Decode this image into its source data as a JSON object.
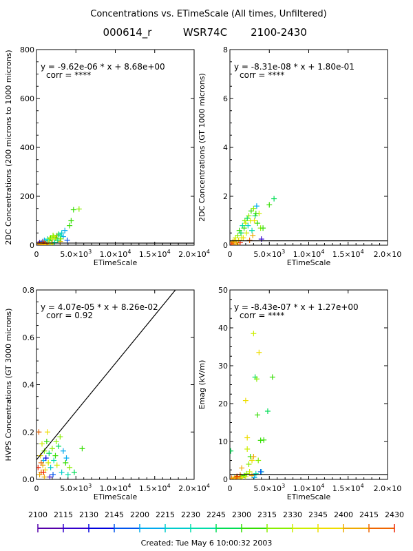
{
  "header": {
    "title": "Concentrations vs. ETimeScale (All times, Unfiltered)",
    "id": "000614_r",
    "aircraft": "WSR74C",
    "time_range": "2100-2430"
  },
  "footer": {
    "created": "Created: Tue May  6 10:00:32 2003"
  },
  "colorbar": {
    "labels": [
      "2100",
      "2115",
      "2130",
      "2145",
      "2200",
      "2215",
      "2230",
      "2245",
      "2300",
      "2315",
      "2330",
      "2345",
      "2400",
      "2415",
      "2430"
    ],
    "colors": [
      "#5500aa",
      "#3300cc",
      "#0000dd",
      "#0055ee",
      "#00aaee",
      "#00cccc",
      "#00ddaa",
      "#00dd55",
      "#33dd00",
      "#88ee00",
      "#ccee00",
      "#eedd00",
      "#eeaa00",
      "#ee6600",
      "#ee2200"
    ]
  },
  "chart_data": [
    {
      "type": "scatter",
      "xlabel": "ETimeScale",
      "ylabel": "2DC Concentrations (200 microns to 1000 microns)",
      "fit_text": "y = -9.62e-06 * x  + 8.68e+00",
      "corr_text": "corr = ****",
      "xlim": [
        0,
        20000
      ],
      "ylim": [
        0,
        800
      ],
      "xticks": [
        0,
        5000,
        10000,
        15000,
        20000
      ],
      "xtick_labels": [
        [
          "0",
          ""
        ],
        [
          "5.0×10",
          "3"
        ],
        [
          "1.0×10",
          "4"
        ],
        [
          "1.5×10",
          "4"
        ],
        [
          "2.0×10",
          "4"
        ]
      ],
      "yticks": [
        0,
        200,
        400,
        600,
        800
      ],
      "ytick_labels": [
        "0",
        "200",
        "400",
        "600",
        "800"
      ],
      "fit_line": {
        "slope": -9.62e-06,
        "intercept": 8.68
      },
      "points": [
        [
          200,
          5,
          0
        ],
        [
          400,
          10,
          1
        ],
        [
          600,
          8,
          2
        ],
        [
          800,
          15,
          3
        ],
        [
          1000,
          20,
          4
        ],
        [
          1200,
          12,
          5
        ],
        [
          1400,
          25,
          6
        ],
        [
          1600,
          18,
          7
        ],
        [
          1800,
          30,
          8
        ],
        [
          2000,
          22,
          9
        ],
        [
          2200,
          35,
          10
        ],
        [
          2400,
          28,
          11
        ],
        [
          2600,
          40,
          12
        ],
        [
          1000,
          8,
          13
        ],
        [
          800,
          12,
          14
        ],
        [
          500,
          3,
          13
        ],
        [
          300,
          6,
          12
        ],
        [
          1500,
          10,
          11
        ],
        [
          1700,
          28,
          10
        ],
        [
          2100,
          40,
          9
        ],
        [
          2500,
          30,
          8
        ],
        [
          2800,
          45,
          7
        ],
        [
          3000,
          38,
          6
        ],
        [
          3200,
          50,
          5
        ],
        [
          3400,
          35,
          4
        ],
        [
          3600,
          60,
          4
        ],
        [
          3900,
          20,
          3
        ],
        [
          4200,
          80,
          8
        ],
        [
          4400,
          100,
          8
        ],
        [
          4700,
          145,
          8
        ],
        [
          5400,
          148,
          9
        ],
        [
          3000,
          15,
          12
        ],
        [
          2000,
          10,
          13
        ],
        [
          1200,
          5,
          14
        ],
        [
          700,
          2,
          12
        ],
        [
          1100,
          3,
          11
        ],
        [
          1900,
          5,
          10
        ],
        [
          2300,
          12,
          6
        ],
        [
          2700,
          20,
          7
        ],
        [
          3100,
          26,
          9
        ]
      ]
    },
    {
      "type": "scatter",
      "xlabel": "ETimeScale",
      "ylabel": "2DC Concentrations (GT 1000 microns)",
      "fit_text": "y = -8.31e-08 * x  + 1.80e-01",
      "corr_text": "corr = ****",
      "xlim": [
        0,
        20000
      ],
      "ylim": [
        0,
        8
      ],
      "xticks": [
        0,
        5000,
        10000,
        15000,
        20000
      ],
      "xtick_labels": [
        [
          "0",
          ""
        ],
        [
          "5.0×10",
          "3"
        ],
        [
          "1.0×10",
          "4"
        ],
        [
          "1.5×10",
          "4"
        ],
        [
          "2.0×10",
          ""
        ]
      ],
      "yticks": [
        0,
        2,
        4,
        6,
        8
      ],
      "ytick_labels": [
        "0",
        "2",
        "4",
        "6",
        "8"
      ],
      "fit_line": {
        "slope": -8.31e-08,
        "intercept": 0.18
      },
      "points": [
        [
          200,
          0.05,
          14
        ],
        [
          300,
          0.1,
          13
        ],
        [
          400,
          0.15,
          12
        ],
        [
          500,
          0.05,
          13
        ],
        [
          600,
          0.2,
          11
        ],
        [
          700,
          0.3,
          10
        ],
        [
          800,
          0.1,
          12
        ],
        [
          1000,
          0.4,
          9
        ],
        [
          1100,
          0.2,
          11
        ],
        [
          1200,
          0.6,
          8
        ],
        [
          1400,
          0.5,
          7
        ],
        [
          1500,
          0.3,
          10
        ],
        [
          1600,
          0.8,
          6
        ],
        [
          1800,
          0.7,
          8
        ],
        [
          1900,
          1.0,
          9
        ],
        [
          2000,
          0.9,
          10
        ],
        [
          2200,
          1.1,
          7
        ],
        [
          2300,
          0.8,
          5
        ],
        [
          2400,
          1.2,
          9
        ],
        [
          2600,
          1.0,
          10
        ],
        [
          2700,
          1.4,
          8
        ],
        [
          2800,
          0.6,
          6
        ],
        [
          3000,
          1.5,
          9
        ],
        [
          3100,
          1.0,
          11
        ],
        [
          3200,
          1.2,
          7
        ],
        [
          3400,
          1.6,
          4
        ],
        [
          3500,
          0.9,
          8
        ],
        [
          3700,
          1.3,
          10
        ],
        [
          3900,
          0.7,
          9
        ],
        [
          4200,
          0.7,
          8
        ],
        [
          4000,
          0.25,
          1
        ],
        [
          5000,
          1.65,
          8
        ],
        [
          5600,
          1.9,
          7
        ],
        [
          2500,
          0.2,
          13
        ],
        [
          1300,
          0.1,
          14
        ],
        [
          900,
          0.05,
          12
        ],
        [
          1700,
          0.3,
          11
        ],
        [
          2100,
          0.5,
          10
        ],
        [
          3300,
          1.3,
          8
        ],
        [
          2900,
          0.4,
          12
        ]
      ]
    },
    {
      "type": "scatter",
      "xlabel": "ETimeScale",
      "ylabel": "HVPS Concentrations (GT 3000 microns)",
      "fit_text": "y = 4.07e-05 * x  + 8.26e-02",
      "corr_text": "corr = 0.92",
      "xlim": [
        0,
        20000
      ],
      "ylim": [
        0,
        0.8
      ],
      "xticks": [
        0,
        5000,
        10000,
        15000,
        20000
      ],
      "xtick_labels": [
        [
          "0",
          ""
        ],
        [
          "5.0×10",
          "3"
        ],
        [
          "1.0×10",
          "4"
        ],
        [
          "1.5×10",
          "4"
        ],
        [
          "2.0×10",
          "4"
        ]
      ],
      "yticks": [
        0,
        0.2,
        0.4,
        0.6,
        0.8
      ],
      "ytick_labels": [
        "0.0",
        "0.2",
        "0.4",
        "0.6",
        "0.8"
      ],
      "fit_line": {
        "slope": 4.07e-05,
        "intercept": 0.0826
      },
      "points": [
        [
          300,
          0.2,
          13
        ],
        [
          200,
          0.05,
          14
        ],
        [
          400,
          0.02,
          12
        ],
        [
          500,
          0.1,
          11
        ],
        [
          600,
          0.03,
          13
        ],
        [
          700,
          0.15,
          10
        ],
        [
          800,
          0.06,
          12
        ],
        [
          900,
          0.08,
          4
        ],
        [
          1000,
          0.12,
          9
        ],
        [
          1100,
          0.04,
          11
        ],
        [
          1200,
          0.09,
          2
        ],
        [
          1300,
          0.16,
          8
        ],
        [
          1500,
          0.07,
          10
        ],
        [
          1600,
          0.11,
          7
        ],
        [
          1800,
          0.05,
          5
        ],
        [
          2000,
          0.13,
          9
        ],
        [
          2200,
          0.08,
          6
        ],
        [
          2400,
          0.1,
          8
        ],
        [
          2600,
          0.06,
          10
        ],
        [
          2800,
          0.14,
          7
        ],
        [
          3000,
          0.18,
          9
        ],
        [
          3200,
          0.03,
          5
        ],
        [
          3400,
          0.12,
          4
        ],
        [
          3700,
          0.07,
          8
        ],
        [
          4000,
          0.02,
          6
        ],
        [
          4200,
          0.05,
          9
        ],
        [
          4800,
          0.03,
          7
        ],
        [
          5800,
          0.13,
          8
        ],
        [
          1400,
          0.2,
          11
        ],
        [
          2100,
          0.02,
          3
        ],
        [
          2500,
          0.16,
          9
        ],
        [
          3800,
          0.09,
          4
        ],
        [
          1700,
          0.01,
          1
        ],
        [
          900,
          0.03,
          14
        ],
        [
          600,
          0.07,
          13
        ],
        [
          1000,
          0.01,
          12
        ]
      ]
    },
    {
      "type": "scatter",
      "xlabel": "ETimeScale",
      "ylabel": "Emag (kV/m)",
      "fit_text": "y = -8.43e-07 * x  + 1.27e+00",
      "corr_text": "corr = ****",
      "xlim": [
        0,
        20000
      ],
      "ylim": [
        0,
        50
      ],
      "xticks": [
        0,
        5000,
        10000,
        15000,
        20000
      ],
      "xtick_labels": [
        [
          "0",
          ""
        ],
        [
          "5.0×10",
          "3"
        ],
        [
          "1.0×10",
          "4"
        ],
        [
          "1.5×10",
          "4"
        ],
        [
          "2.0×10",
          ""
        ]
      ],
      "yticks": [
        0,
        10,
        20,
        30,
        40,
        50
      ],
      "ytick_labels": [
        "0",
        "10",
        "20",
        "30",
        "40",
        "50"
      ],
      "fit_line": {
        "slope": -8.43e-07,
        "intercept": 1.27
      },
      "points": [
        [
          100,
          7.5,
          7
        ],
        [
          200,
          0.3,
          13
        ],
        [
          400,
          0.2,
          12
        ],
        [
          600,
          0.5,
          11
        ],
        [
          800,
          0.4,
          13
        ],
        [
          1000,
          0.6,
          10
        ],
        [
          1200,
          0.3,
          12
        ],
        [
          1400,
          0.8,
          9
        ],
        [
          1600,
          0.5,
          11
        ],
        [
          1800,
          1.0,
          8
        ],
        [
          2000,
          0.7,
          10
        ],
        [
          2200,
          11,
          11
        ],
        [
          2000,
          20.8,
          11
        ],
        [
          2200,
          8,
          10
        ],
        [
          2400,
          4,
          9
        ],
        [
          2600,
          6,
          8
        ],
        [
          2800,
          5,
          11
        ],
        [
          3000,
          38.5,
          10
        ],
        [
          3200,
          27,
          7
        ],
        [
          3400,
          26.5,
          9
        ],
        [
          3500,
          17,
          8
        ],
        [
          3700,
          33.5,
          11
        ],
        [
          3900,
          10.3,
          8
        ],
        [
          4000,
          2,
          5
        ],
        [
          3300,
          1.5,
          6
        ],
        [
          4300,
          10.4,
          8
        ],
        [
          4800,
          18,
          7
        ],
        [
          5400,
          27,
          8
        ],
        [
          2800,
          1.0,
          12
        ],
        [
          1500,
          3,
          12
        ],
        [
          3000,
          6,
          12
        ],
        [
          2500,
          2,
          10
        ],
        [
          3600,
          5,
          9
        ],
        [
          1300,
          1.2,
          13
        ],
        [
          900,
          0.8,
          14
        ],
        [
          2100,
          1.5,
          9
        ],
        [
          3900,
          2,
          3
        ],
        [
          3100,
          0.5,
          4
        ]
      ]
    }
  ]
}
